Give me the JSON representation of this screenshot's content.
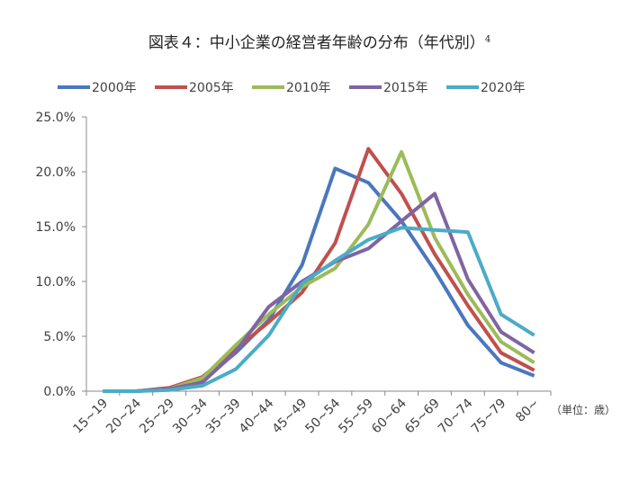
{
  "chart_data": {
    "type": "line",
    "title": "図表４：中小企業の経営者年齢の分布（年代別）",
    "title_footnote": "4",
    "categories": [
      "15~19",
      "20~24",
      "25~29",
      "30~34",
      "35~39",
      "40~44",
      "45~49",
      "50~54",
      "55~59",
      "60~64",
      "65~69",
      "70~74",
      "75~79",
      "80~"
    ],
    "unit_label": "（単位：歳）",
    "ylim": [
      0,
      25
    ],
    "yticks": [
      "0.0%",
      "5.0%",
      "10.0%",
      "15.0%",
      "20.0%",
      "25.0%"
    ],
    "legend_position": "top",
    "series": [
      {
        "name": "2000年",
        "color": "#4a77bd",
        "values": [
          0.0,
          0.0,
          0.2,
          1.0,
          3.5,
          6.5,
          11.5,
          20.3,
          19.0,
          15.5,
          11.0,
          6.0,
          2.6,
          1.4
        ]
      },
      {
        "name": "2005年",
        "color": "#c0504d",
        "values": [
          0.0,
          0.0,
          0.3,
          1.3,
          3.8,
          6.3,
          9.0,
          13.5,
          22.1,
          18.0,
          12.5,
          7.8,
          3.5,
          1.9
        ]
      },
      {
        "name": "2010年",
        "color": "#9bbb59",
        "values": [
          0.0,
          0.0,
          0.2,
          1.2,
          4.2,
          7.0,
          9.5,
          11.2,
          15.2,
          21.8,
          14.0,
          8.8,
          4.5,
          2.6
        ]
      },
      {
        "name": "2015年",
        "color": "#8064a2",
        "values": [
          0.0,
          0.0,
          0.2,
          0.8,
          3.6,
          7.7,
          10.0,
          11.8,
          13.0,
          15.5,
          18.0,
          10.2,
          5.4,
          3.5
        ]
      },
      {
        "name": "2020年",
        "color": "#4bacc6",
        "values": [
          0.0,
          0.0,
          0.1,
          0.5,
          2.0,
          5.1,
          9.8,
          11.9,
          13.8,
          14.9,
          14.7,
          14.5,
          7.0,
          5.1
        ]
      }
    ]
  }
}
